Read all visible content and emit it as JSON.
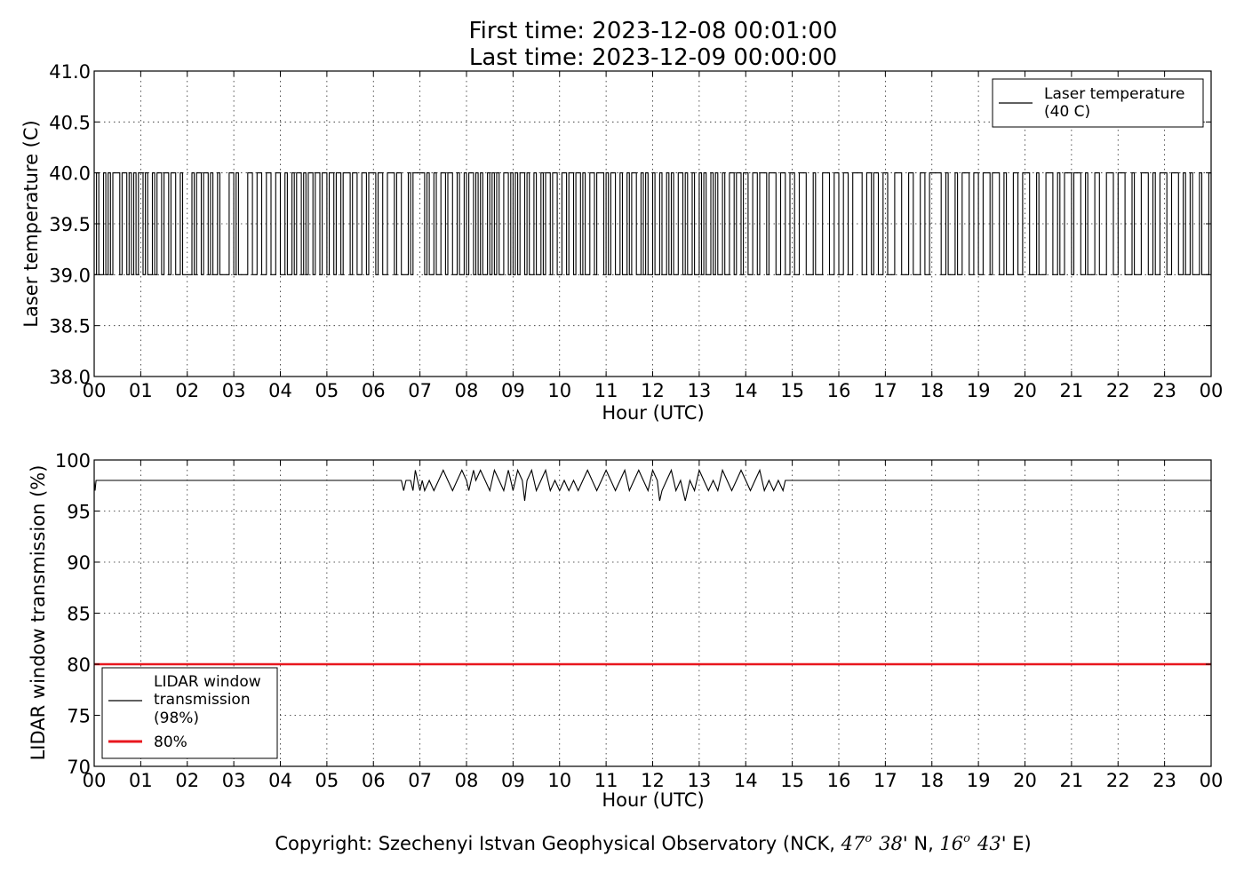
{
  "header": {
    "title_line1": "First time: 2023-12-08 00:01:00",
    "title_line2": "Last time: 2023-12-09 00:00:00"
  },
  "copyright": {
    "prefix": "Copyright: Szechenyi Istvan Geophysical Observatory (NCK, ",
    "lat_deg": "47",
    "lat_min": "38",
    "lat_dir": "N,",
    "lon_deg": "16",
    "lon_min": "43",
    "lon_dir": "E)"
  },
  "colors": {
    "temperature_line": "#000000",
    "transmission_line": "#000000",
    "threshold_line": "#e8161e"
  },
  "chart_data": [
    {
      "type": "line",
      "xlabel": "Hour (UTC)",
      "ylabel": "Laser temperature (C)",
      "xlim": [
        0,
        24
      ],
      "ylim": [
        38.0,
        41.0
      ],
      "grid": true,
      "legend_placement": "top-right",
      "xtick_labels": [
        "00",
        "01",
        "02",
        "03",
        "04",
        "05",
        "06",
        "07",
        "08",
        "09",
        "10",
        "11",
        "12",
        "13",
        "14",
        "15",
        "16",
        "17",
        "18",
        "19",
        "20",
        "21",
        "22",
        "23",
        "00"
      ],
      "ytick_labels": [
        "38.0",
        "38.5",
        "39.0",
        "39.5",
        "40.0",
        "40.5",
        "41.0"
      ],
      "ytick_values": [
        38.0,
        38.5,
        39.0,
        39.5,
        40.0,
        40.5,
        41.0
      ],
      "series": [
        {
          "name": "Laser temperature\n(40 C)",
          "color": "#000000",
          "x": [
            0.0,
            0.05,
            0.1,
            0.2,
            0.25,
            0.3,
            0.35,
            0.4,
            0.55,
            0.6,
            0.7,
            0.75,
            0.8,
            0.85,
            0.9,
            0.95,
            1.05,
            1.1,
            1.15,
            1.25,
            1.3,
            1.35,
            1.45,
            1.5,
            1.6,
            1.65,
            1.75,
            1.85,
            1.9,
            2.1,
            2.15,
            2.2,
            2.3,
            2.35,
            2.45,
            2.5,
            2.55,
            2.65,
            2.7,
            2.9,
            3.0,
            3.05,
            3.1,
            3.3,
            3.4,
            3.5,
            3.6,
            3.7,
            3.8,
            3.9,
            4.0,
            4.1,
            4.15,
            4.25,
            4.3,
            4.35,
            4.45,
            4.5,
            4.55,
            4.6,
            4.7,
            4.75,
            4.85,
            4.9,
            5.0,
            5.05,
            5.15,
            5.2,
            5.3,
            5.35,
            5.5,
            5.55,
            5.65,
            5.75,
            5.85,
            5.9,
            6.05,
            6.1,
            6.2,
            6.3,
            6.45,
            6.5,
            6.6,
            6.75,
            6.8,
            6.85,
            7.1,
            7.15,
            7.2,
            7.3,
            7.35,
            7.45,
            7.55,
            7.6,
            7.7,
            7.8,
            7.85,
            7.95,
            8.0,
            8.05,
            8.15,
            8.2,
            8.25,
            8.3,
            8.35,
            8.45,
            8.5,
            8.55,
            8.6,
            8.65,
            8.7,
            8.8,
            8.9,
            8.95,
            9.0,
            9.05,
            9.1,
            9.15,
            9.25,
            9.3,
            9.35,
            9.45,
            9.5,
            9.6,
            9.65,
            9.7,
            9.8,
            9.85,
            9.95,
            10.05,
            10.15,
            10.2,
            10.3,
            10.35,
            10.45,
            10.5,
            10.55,
            10.65,
            10.75,
            10.8,
            10.95,
            11.0,
            11.05,
            11.1,
            11.2,
            11.3,
            11.35,
            11.45,
            11.5,
            11.55,
            11.65,
            11.75,
            11.8,
            11.85,
            11.9,
            12.0,
            12.05,
            12.15,
            12.2,
            12.3,
            12.35,
            12.4,
            12.45,
            12.55,
            12.65,
            12.7,
            12.75,
            12.85,
            12.9,
            13.0,
            13.05,
            13.1,
            13.15,
            13.25,
            13.3,
            13.35,
            13.4,
            13.5,
            13.55,
            13.65,
            13.75,
            13.8,
            13.9,
            13.95,
            14.05,
            14.15,
            14.25,
            14.3,
            14.45,
            14.5,
            14.65,
            14.75,
            14.85,
            14.95,
            15.05,
            15.15,
            15.3,
            15.45,
            15.5,
            15.65,
            15.8,
            15.9,
            16.0,
            16.1,
            16.2,
            16.3,
            16.5,
            16.6,
            16.7,
            16.75,
            16.85,
            16.95,
            17.05,
            17.2,
            17.35,
            17.5,
            17.6,
            17.75,
            17.85,
            17.95,
            18.2,
            18.3,
            18.35,
            18.5,
            18.55,
            18.65,
            18.8,
            18.9,
            19.0,
            19.1,
            19.25,
            19.3,
            19.45,
            19.55,
            19.6,
            19.75,
            19.85,
            19.95,
            20.1,
            20.25,
            20.3,
            20.45,
            20.6,
            20.7,
            20.75,
            20.85,
            21.0,
            21.05,
            21.2,
            21.3,
            21.35,
            21.5,
            21.6,
            21.75,
            21.9,
            22.0,
            22.15,
            22.3,
            22.35,
            22.5,
            22.65,
            22.75,
            22.8,
            22.9,
            23.05,
            23.15,
            23.3,
            23.4,
            23.45,
            23.55,
            23.6,
            23.75,
            23.8,
            23.95,
            24.0
          ],
          "y": [
            39.0,
            40.0,
            39.0,
            40.0,
            39.0,
            40.0,
            39.0,
            40.0,
            39.0,
            40.0,
            39.0,
            40.0,
            39.0,
            40.0,
            39.0,
            40.0,
            39.0,
            40.0,
            39.0,
            40.0,
            39.0,
            40.0,
            39.0,
            40.0,
            39.0,
            40.0,
            39.0,
            40.0,
            39.0,
            40.0,
            39.0,
            40.0,
            39.0,
            40.0,
            39.0,
            40.0,
            39.0,
            40.0,
            39.0,
            40.0,
            39.0,
            40.0,
            39.0,
            40.0,
            39.0,
            40.0,
            39.0,
            40.0,
            39.0,
            40.0,
            39.0,
            40.0,
            39.0,
            40.0,
            39.0,
            40.0,
            39.0,
            40.0,
            39.0,
            40.0,
            39.0,
            40.0,
            39.0,
            40.0,
            39.0,
            40.0,
            39.0,
            40.0,
            39.0,
            40.0,
            39.0,
            40.0,
            39.0,
            40.0,
            39.0,
            40.0,
            39.0,
            40.0,
            39.0,
            40.0,
            39.0,
            40.0,
            39.0,
            40.0,
            39.0,
            40.0,
            39.0,
            40.0,
            39.0,
            40.0,
            39.0,
            40.0,
            39.0,
            40.0,
            39.0,
            40.0,
            39.0,
            40.0,
            39.0,
            40.0,
            39.0,
            40.0,
            39.0,
            40.0,
            39.0,
            40.0,
            39.0,
            40.0,
            39.0,
            40.0,
            39.0,
            40.0,
            39.0,
            40.0,
            39.0,
            40.0,
            39.0,
            40.0,
            39.0,
            40.0,
            39.0,
            40.0,
            39.0,
            40.0,
            39.0,
            40.0,
            39.0,
            40.0,
            39.0,
            40.0,
            39.0,
            40.0,
            39.0,
            40.0,
            39.0,
            40.0,
            39.0,
            40.0,
            39.0,
            40.0,
            39.0,
            40.0,
            39.0,
            40.0,
            39.0,
            40.0,
            39.0,
            40.0,
            39.0,
            40.0,
            39.0,
            40.0,
            39.0,
            40.0,
            39.0,
            40.0,
            39.0,
            40.0,
            39.0,
            40.0,
            39.0,
            40.0,
            39.0,
            40.0,
            39.0,
            40.0,
            39.0,
            40.0,
            39.0,
            40.0,
            39.0,
            40.0,
            39.0,
            40.0,
            39.0,
            40.0,
            39.0,
            40.0,
            39.0,
            40.0,
            39.0,
            40.0,
            39.0,
            40.0,
            39.0,
            40.0,
            39.0,
            40.0,
            39.0,
            40.0,
            39.0,
            40.0,
            39.0,
            40.0,
            39.0,
            40.0,
            39.0,
            40.0,
            39.0,
            40.0,
            39.0,
            40.0,
            39.0,
            40.0,
            39.0,
            40.0,
            39.0,
            40.0,
            39.0,
            40.0,
            39.0,
            40.0,
            39.0,
            40.0,
            39.0,
            40.0,
            39.0,
            40.0,
            39.0,
            40.0,
            39.0,
            40.0,
            39.0,
            40.0,
            39.0,
            40.0,
            39.0,
            40.0,
            39.0,
            40.0,
            39.0,
            40.0,
            39.0,
            40.0,
            39.0,
            40.0,
            39.0,
            40.0,
            39.0,
            40.0,
            39.0,
            40.0,
            39.0,
            40.0,
            39.0,
            40.0,
            39.0,
            40.0,
            39.0,
            40.0,
            39.0,
            40.0,
            39.0,
            40.0,
            39.0,
            40.0,
            39.0,
            40.0,
            39.0,
            40.0,
            39.0,
            40.0,
            39.0,
            40.0,
            39.0,
            40.0,
            39.0,
            40.0,
            39.0,
            40.0,
            39.0,
            40.0,
            39.0,
            40.0,
            39.0
          ]
        }
      ]
    },
    {
      "type": "line",
      "xlabel": "Hour (UTC)",
      "ylabel": "LIDAR window transmission (%)",
      "xlim": [
        0,
        24
      ],
      "ylim": [
        70,
        100
      ],
      "grid": true,
      "legend_placement": "lower-left",
      "xtick_labels": [
        "00",
        "01",
        "02",
        "03",
        "04",
        "05",
        "06",
        "07",
        "08",
        "09",
        "10",
        "11",
        "12",
        "13",
        "14",
        "15",
        "16",
        "17",
        "18",
        "19",
        "20",
        "21",
        "22",
        "23",
        "00"
      ],
      "ytick_labels": [
        "70",
        "75",
        "80",
        "85",
        "90",
        "95",
        "100"
      ],
      "ytick_values": [
        70,
        75,
        80,
        85,
        90,
        95,
        100
      ],
      "series": [
        {
          "name": "LIDAR window\ntransmission\n(98%)",
          "color": "#000000",
          "x": [
            0.0,
            0.02,
            0.04,
            0.06,
            6.6,
            6.65,
            6.7,
            6.8,
            6.85,
            6.9,
            6.95,
            7.0,
            7.05,
            7.1,
            7.2,
            7.3,
            7.4,
            7.5,
            7.6,
            7.7,
            7.8,
            7.9,
            8.0,
            8.05,
            8.1,
            8.15,
            8.2,
            8.3,
            8.4,
            8.5,
            8.55,
            8.6,
            8.7,
            8.8,
            8.9,
            8.95,
            9.0,
            9.1,
            9.2,
            9.25,
            9.3,
            9.4,
            9.5,
            9.6,
            9.7,
            9.8,
            9.9,
            10.0,
            10.1,
            10.2,
            10.3,
            10.4,
            10.5,
            10.6,
            10.7,
            10.8,
            10.9,
            11.0,
            11.1,
            11.2,
            11.3,
            11.4,
            11.5,
            11.6,
            11.7,
            11.8,
            11.9,
            12.0,
            12.1,
            12.15,
            12.2,
            12.3,
            12.4,
            12.5,
            12.6,
            12.7,
            12.8,
            12.9,
            13.0,
            13.1,
            13.2,
            13.3,
            13.4,
            13.5,
            13.6,
            13.7,
            13.8,
            13.9,
            14.0,
            14.1,
            14.2,
            14.3,
            14.4,
            14.5,
            14.6,
            14.7,
            14.8,
            14.85,
            24.0
          ],
          "y": [
            98,
            97,
            98,
            98,
            98,
            97,
            98,
            98,
            97,
            99,
            98,
            97,
            98,
            97,
            98,
            97,
            98,
            99,
            98,
            97,
            98,
            99,
            98,
            97,
            98,
            99,
            98,
            99,
            98,
            97,
            98,
            99,
            98,
            97,
            99,
            98,
            97,
            99,
            98,
            96,
            98,
            99,
            97,
            98,
            99,
            97,
            98,
            97,
            98,
            97,
            98,
            97,
            98,
            99,
            98,
            97,
            98,
            99,
            98,
            97,
            98,
            99,
            97,
            98,
            99,
            98,
            97,
            99,
            98,
            96,
            97,
            98,
            99,
            97,
            98,
            96,
            98,
            97,
            99,
            98,
            97,
            98,
            97,
            99,
            98,
            97,
            98,
            99,
            98,
            97,
            98,
            99,
            97,
            98,
            97,
            98,
            97,
            98,
            98
          ]
        },
        {
          "name": "80%",
          "color": "#e8161e",
          "x": [
            0,
            24
          ],
          "y": [
            80,
            80
          ]
        }
      ]
    }
  ]
}
